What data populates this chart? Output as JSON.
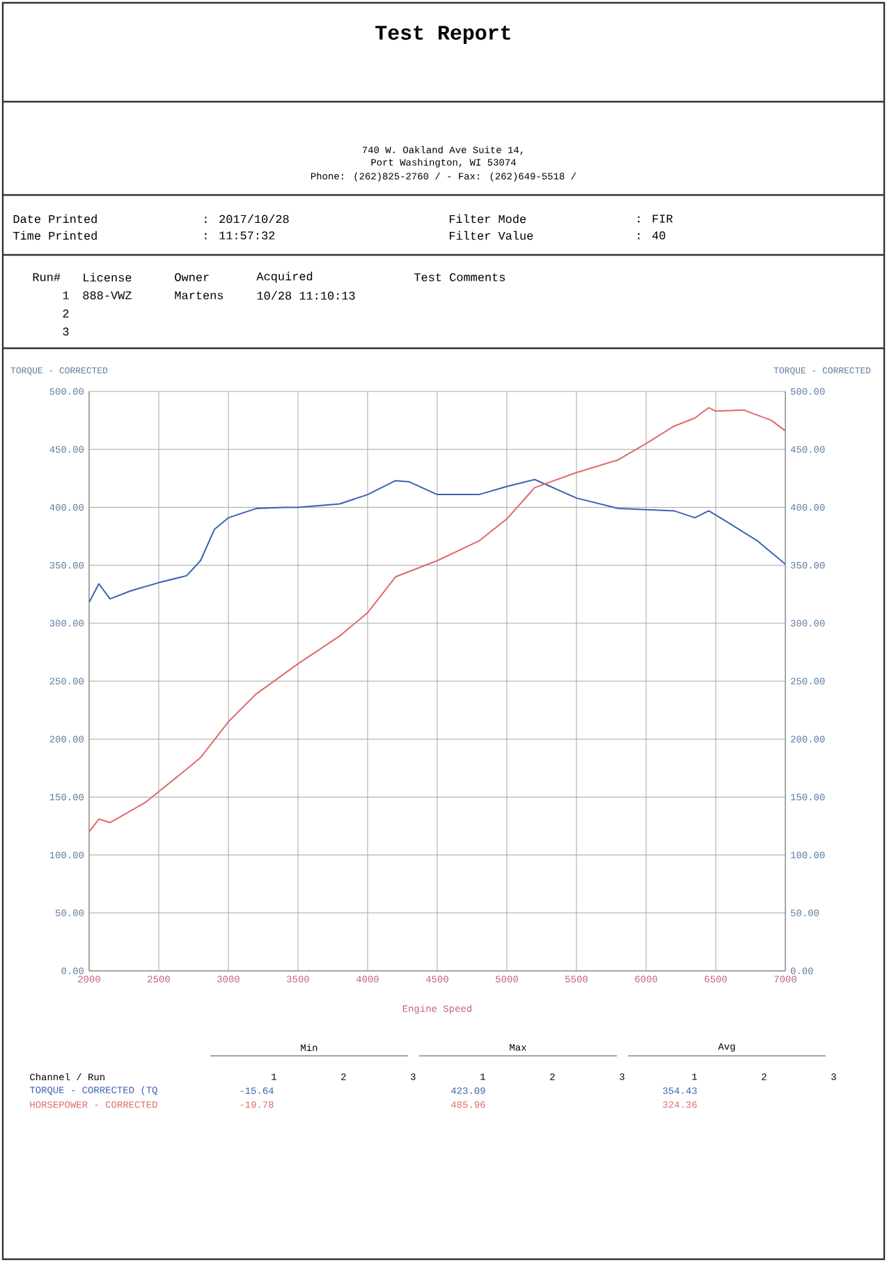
{
  "chart_data": {
    "type": "line",
    "title": "Test Report",
    "xlabel": "Engine Speed",
    "ylabel": "TORQUE - CORRECTED",
    "y2label": "TORQUE - CORRECTED",
    "xlim": [
      2000,
      7000
    ],
    "xticks": [
      2000,
      2500,
      3000,
      3500,
      4000,
      4500,
      5000,
      5500,
      6000,
      6500,
      7000
    ],
    "ylim": [
      0,
      500
    ],
    "yticks": [
      {
        "value": 0,
        "label": "0.00"
      },
      {
        "value": 50,
        "label": "50.00"
      },
      {
        "value": 100,
        "label": "100.00"
      },
      {
        "value": 150,
        "label": "150.00"
      },
      {
        "value": 200,
        "label": "200.00"
      },
      {
        "value": 250,
        "label": "250.00"
      },
      {
        "value": 300,
        "label": "300.00"
      },
      {
        "value": 350,
        "label": "350.00"
      },
      {
        "value": 400,
        "label": "400.00"
      },
      {
        "value": 450,
        "label": "450.00"
      },
      {
        "value": 500,
        "label": "500.00"
      }
    ],
    "y2lim": [
      0,
      500
    ],
    "y2ticks": [
      {
        "value": 0,
        "label": "0.00"
      },
      {
        "value": 50,
        "label": "50.00"
      },
      {
        "value": 100,
        "label": "100.00"
      },
      {
        "value": 150,
        "label": "150.00"
      },
      {
        "value": 200,
        "label": "200.00"
      },
      {
        "value": 250,
        "label": "250.00"
      },
      {
        "value": 300,
        "label": "300.00"
      },
      {
        "value": 350,
        "label": "350.00"
      },
      {
        "value": 400,
        "label": "400.00"
      },
      {
        "value": 450,
        "label": "450.00"
      },
      {
        "value": 500,
        "label": "500.00"
      }
    ],
    "grid": true,
    "series": [
      {
        "name": "TORQUE - CORRECTED (TQ",
        "color": "#3a62b0",
        "x": [
          2000,
          2070,
          2150,
          2300,
          2500,
          2700,
          2800,
          2900,
          3000,
          3200,
          3400,
          3500,
          3800,
          4000,
          4200,
          4300,
          4500,
          4800,
          5000,
          5200,
          5500,
          5800,
          6000,
          6200,
          6350,
          6450,
          6600,
          6800,
          7000
        ],
        "values": [
          318,
          334,
          321,
          328,
          335,
          341,
          354,
          381,
          391,
          399,
          400,
          400,
          403,
          411,
          423,
          422,
          411,
          411,
          418,
          424,
          408,
          399,
          398,
          397,
          391,
          397,
          386,
          371,
          351
        ]
      },
      {
        "name": "HORSEPOWER - CORRECTED",
        "color": "#e06a6a",
        "x": [
          2000,
          2070,
          2150,
          2400,
          2700,
          2800,
          3000,
          3200,
          3500,
          3800,
          4000,
          4200,
          4500,
          4800,
          5000,
          5200,
          5500,
          5800,
          6000,
          6200,
          6350,
          6450,
          6500,
          6700,
          6900,
          7000
        ],
        "values": [
          120,
          131,
          128,
          145,
          174,
          184,
          215,
          239,
          265,
          289,
          309,
          340,
          354,
          371,
          390,
          417,
          430,
          441,
          455,
          470,
          477,
          486,
          483,
          484,
          475,
          466
        ]
      }
    ],
    "annotations": [
      "740 W. Oakland Ave Suite 14,",
      "Port Washington, WI  53074",
      "Phone: (262)825-2760 /  - Fax: (262)649-5518 /",
      "Date Printed",
      ": 2017/10/28",
      "Time Printed",
      ": 11:57:32",
      "Filter Mode",
      ": FIR",
      "Filter Value",
      ": 40",
      "Run#",
      "License",
      "Owner",
      "Acquired",
      "Test Comments",
      "1",
      "888-VWZ",
      "Martens",
      "10/28 11:10:13",
      "2",
      "3",
      "Min",
      "Max",
      "Avg",
      "Channel / Run",
      "1",
      "2",
      "3",
      "1",
      "2",
      "3",
      "1",
      "2",
      "3",
      "-15.64",
      "423.09",
      "354.43",
      "-19.78",
      "485.96",
      "324.36"
    ]
  }
}
